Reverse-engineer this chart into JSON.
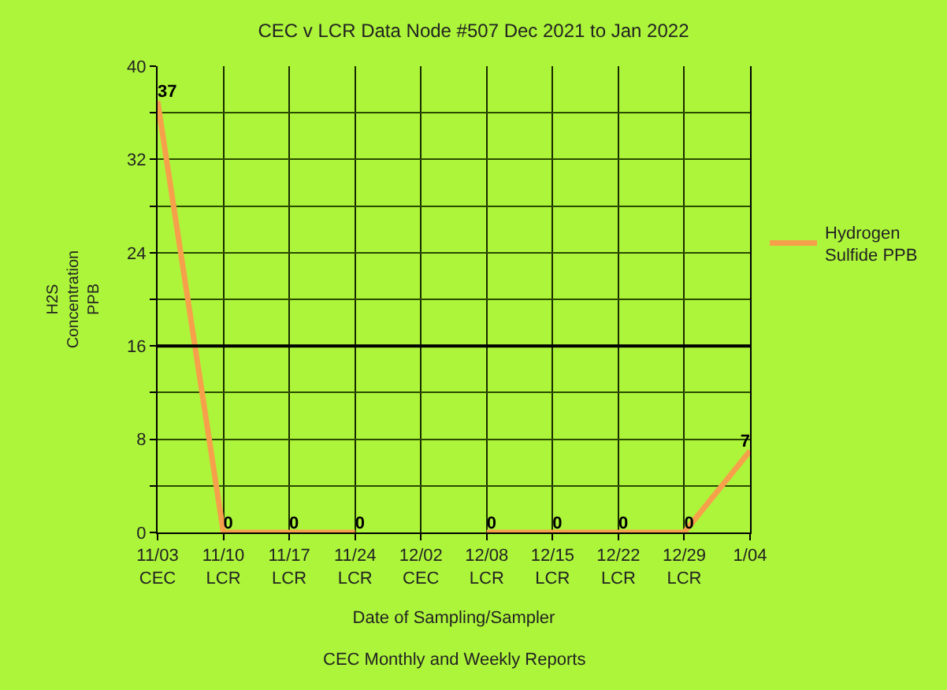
{
  "chart_data": {
    "type": "line",
    "title": "CEC v LCR Data Node #507 Dec 2021 to Jan 2022",
    "xlabel": "Date of Sampling/Sampler",
    "ylabel": "H2S\nConcentration\nPPB",
    "annotations": [
      "CEC Monthly and Weekly Reports"
    ],
    "categories": [
      "11/03\nCEC",
      "11/10\nLCR",
      "11/17\nLCR",
      "11/24\nLCR",
      "12/02\nCEC",
      "12/08\nLCR",
      "12/15\nLCR",
      "12/22\nLCR",
      "12/29\nLCR",
      "1/04"
    ],
    "series": [
      {
        "name": "Hydrogen\nSulfide PPB",
        "color": "#f7a04c",
        "values": [
          37,
          0,
          0,
          0,
          null,
          0,
          0,
          0,
          0,
          7
        ]
      }
    ],
    "ylim": [
      0,
      40
    ],
    "yticks": [
      0,
      {
        "value": 4,
        "label": null
      },
      8,
      {
        "value": 12,
        "label": null
      },
      16,
      {
        "value": 20,
        "label": null
      },
      24,
      {
        "value": 28,
        "label": null
      },
      32,
      {
        "value": 36,
        "label": null
      },
      40
    ],
    "ref_lines": [
      {
        "axis": "y",
        "value": 16,
        "label": null,
        "color": "#000000"
      }
    ],
    "grid": true,
    "legend": "right",
    "data_labels": true,
    "marker": "none",
    "line_style": "solid"
  }
}
